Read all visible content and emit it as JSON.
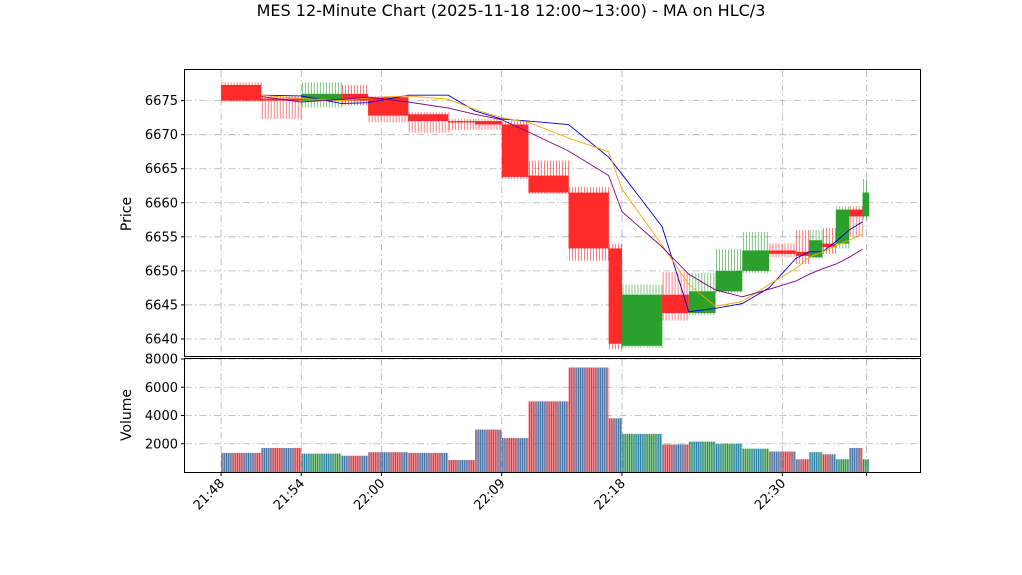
{
  "title": "MES 12-Minute Chart (2025-11-18 12:00~13:00) - MA on HLC/3",
  "colors": {
    "up": "#2ca02c",
    "down": "#ff2a2a",
    "ma_fast": "#0000cc",
    "ma_mid": "#ffa500",
    "ma_slow": "#800080",
    "volume": "#1f77b4",
    "grid": "#b0b0b0"
  },
  "chart_data": [
    {
      "type": "candlestick",
      "ylabel": "Price",
      "ylim": [
        6637.5,
        6679.5
      ],
      "yticks": [
        "6640",
        "6645",
        "6650",
        "6655",
        "6660",
        "6665",
        "6670",
        "6675"
      ],
      "xticks": [
        "21:48",
        "21:54",
        "22:00",
        "22:09",
        "22:18",
        "22:30"
      ],
      "grid": true,
      "candles": [
        {
          "t": "21:48",
          "t_end": "21:51",
          "open": 6677.3,
          "high": 6677.7,
          "low": 6674.8,
          "close": 6675.0
        },
        {
          "t": "21:51",
          "t_end": "21:54",
          "open": 6675.3,
          "high": 6675.7,
          "low": 6672.3,
          "close": 6675.0
        },
        {
          "t": "21:54",
          "t_end": "21:57",
          "open": 6675.0,
          "high": 6677.7,
          "low": 6674.0,
          "close": 6676.0
        },
        {
          "t": "21:57",
          "t_end": "21:59",
          "open": 6676.0,
          "high": 6677.3,
          "low": 6674.3,
          "close": 6675.0
        },
        {
          "t": "21:59",
          "t_end": "22:02",
          "open": 6675.5,
          "high": 6675.7,
          "low": 6671.8,
          "close": 6672.8
        },
        {
          "t": "22:02",
          "t_end": "22:05",
          "open": 6673.0,
          "high": 6673.3,
          "low": 6670.3,
          "close": 6672.0
        },
        {
          "t": "22:05",
          "t_end": "22:07",
          "open": 6672.0,
          "high": 6672.3,
          "low": 6670.7,
          "close": 6671.8
        },
        {
          "t": "22:07",
          "t_end": "22:09",
          "open": 6672.0,
          "high": 6672.3,
          "low": 6670.7,
          "close": 6671.5
        },
        {
          "t": "22:09",
          "t_end": "22:11",
          "open": 6671.5,
          "high": 6672.0,
          "low": 6663.5,
          "close": 6663.8
        },
        {
          "t": "22:11",
          "t_end": "22:14",
          "open": 6664.0,
          "high": 6666.2,
          "low": 6661.3,
          "close": 6661.5
        },
        {
          "t": "22:14",
          "t_end": "22:17",
          "open": 6661.5,
          "high": 6662.3,
          "low": 6651.5,
          "close": 6653.3
        },
        {
          "t": "22:17",
          "t_end": "22:18",
          "open": 6653.3,
          "high": 6654.0,
          "low": 6638.5,
          "close": 6639.3
        },
        {
          "t": "22:18",
          "t_end": "22:21",
          "open": 6639.0,
          "high": 6648.0,
          "low": 6638.7,
          "close": 6646.5
        },
        {
          "t": "22:21",
          "t_end": "22:23",
          "open": 6646.5,
          "high": 6649.8,
          "low": 6642.7,
          "close": 6643.8
        },
        {
          "t": "22:23",
          "t_end": "22:25",
          "open": 6643.8,
          "high": 6649.7,
          "low": 6643.5,
          "close": 6647.0
        },
        {
          "t": "22:25",
          "t_end": "22:27",
          "open": 6647.0,
          "high": 6653.2,
          "low": 6646.8,
          "close": 6650.0
        },
        {
          "t": "22:27",
          "t_end": "22:29",
          "open": 6650.0,
          "high": 6655.7,
          "low": 6649.7,
          "close": 6653.0
        },
        {
          "t": "22:29",
          "t_end": "22:31",
          "open": 6653.0,
          "high": 6654.0,
          "low": 6652.0,
          "close": 6652.5
        },
        {
          "t": "22:31",
          "t_end": "22:32",
          "open": 6652.8,
          "high": 6656.0,
          "low": 6651.0,
          "close": 6652.2
        },
        {
          "t": "22:32",
          "t_end": "22:33",
          "open": 6652.0,
          "high": 6656.0,
          "low": 6651.8,
          "close": 6654.5
        },
        {
          "t": "22:33",
          "t_end": "22:34",
          "open": 6654.0,
          "high": 6656.3,
          "low": 6652.5,
          "close": 6653.5
        },
        {
          "t": "22:34",
          "t_end": "22:35",
          "open": 6654.0,
          "high": 6659.5,
          "low": 6653.3,
          "close": 6659.0
        },
        {
          "t": "22:35",
          "t_end": "22:36",
          "open": 6659.0,
          "high": 6659.5,
          "low": 6655.0,
          "close": 6658.0
        },
        {
          "t": "22:36",
          "t_end": "22:36.5",
          "open": 6658.0,
          "high": 6663.5,
          "low": 6657.5,
          "close": 6661.5
        }
      ],
      "ma_series": [
        {
          "values": [
            6675.8,
            6675.7,
            6674.6,
            6674.7,
            6675.8,
            6675.8,
            6673.5,
            6672.3,
            6672.0,
            6671.5,
            6666.7,
            6664.2,
            6656.5,
            6644.0,
            6644.5,
            6645.2,
            6647.5,
            6651.8,
            6652.8,
            6652.8,
            6654.3,
            6656.0,
            6657.2
          ]
        },
        {
          "values": [
            6675.8,
            6675.3,
            6675.0,
            6675.4,
            6675.7,
            6675.2,
            6673.7,
            6672.5,
            6671.8,
            6669.5,
            6667.5,
            6662.0,
            6653.8,
            6648.0,
            6644.8,
            6645.5,
            6648.0,
            6650.3,
            6652.0,
            6652.8,
            6653.7,
            6654.5,
            6655.4
          ]
        },
        {
          "values": [
            6675.6,
            6674.8,
            6675.2,
            6675.5,
            6674.8,
            6673.9,
            6673.0,
            6672.2,
            6670.4,
            6667.6,
            6664.0,
            6658.7,
            6653.5,
            6649.5,
            6647.2,
            6646.2,
            6647.3,
            6648.5,
            6649.5,
            6650.3,
            6651.0,
            6652.0,
            6653.2
          ]
        }
      ]
    },
    {
      "type": "bar",
      "ylabel": "Volume",
      "ylim": [
        0,
        8000
      ],
      "yticks": [
        "2000",
        "4000",
        "6000",
        "8000"
      ],
      "values": [
        1350,
        1700,
        1300,
        1150,
        1400,
        1350,
        850,
        3000,
        2400,
        5000,
        7400,
        3800,
        2700,
        1950,
        2150,
        2000,
        1650,
        1450,
        900,
        1400,
        1250,
        900,
        1700,
        900
      ]
    }
  ]
}
